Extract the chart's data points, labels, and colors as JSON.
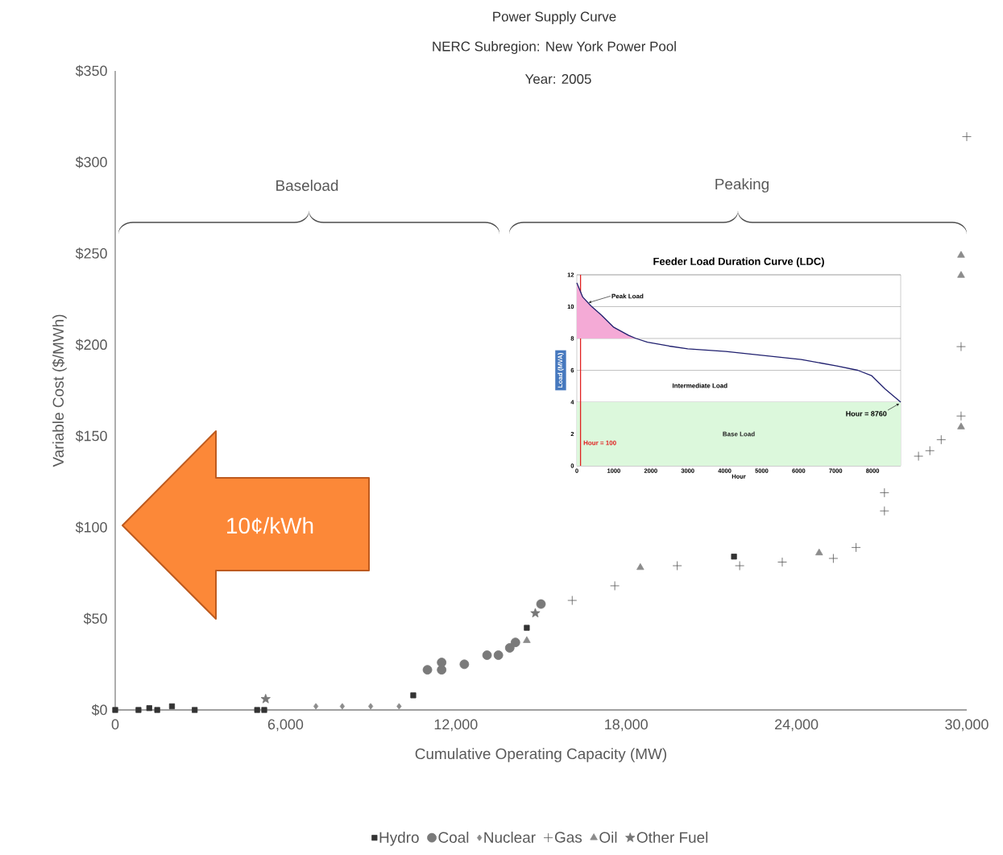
{
  "chart_data": [
    {
      "type": "scatter",
      "title": "Power Supply Curve",
      "subtitle": "NERC Subregion:  New York Power Pool",
      "xlabel": "Cumulative Operating Capacity (MW)",
      "ylabel": "Variable Cost ($/MWh)",
      "annotations": [
        "Year:  2005",
        "Baseload",
        "Peaking",
        "10¢/kWh"
      ],
      "xlim": [
        0,
        30000
      ],
      "ylim": [
        0,
        350
      ],
      "xticks": [
        0,
        {
          "value": 6000,
          "label": "6,000"
        },
        {
          "value": 12000,
          "label": "12,000"
        },
        {
          "value": 18000,
          "label": "18,000"
        },
        {
          "value": 24000,
          "label": "24,000"
        },
        {
          "value": 30000,
          "label": "30,000"
        }
      ],
      "yticks": [
        {
          "value": 0,
          "label": "$0"
        },
        {
          "value": 50,
          "label": "$50"
        },
        {
          "value": 100,
          "label": "$100"
        },
        {
          "value": 150,
          "label": "$150"
        },
        {
          "value": 200,
          "label": "$200"
        },
        {
          "value": 250,
          "label": "$250"
        },
        {
          "value": 300,
          "label": "$300"
        },
        {
          "value": 350,
          "label": "$350"
        }
      ],
      "legend": "bottom",
      "series": [
        {
          "name": "Hydro",
          "color": "#333333",
          "marker": "square",
          "x": [
            0,
            820,
            1200,
            1480,
            2000,
            2800,
            5000,
            5250,
            10500,
            14500,
            21800
          ],
          "values": [
            0,
            0,
            1,
            0,
            2,
            0,
            0,
            0,
            8,
            45,
            84
          ]
        },
        {
          "name": "Coal",
          "color": "#7a7a7a",
          "marker": "circle",
          "x": [
            11000,
            11500,
            11500,
            12300,
            13100,
            13500,
            13900,
            14100,
            15000
          ],
          "values": [
            22,
            22,
            26,
            25,
            30,
            30,
            34,
            37,
            58
          ]
        },
        {
          "name": "Nuclear",
          "color": "#8c8c8c",
          "marker": "diamond",
          "x": [
            7070,
            8000,
            9000,
            10000
          ],
          "values": [
            2,
            2,
            2,
            2
          ]
        },
        {
          "name": "Gas",
          "color": "#555555",
          "marker": "cross",
          "x": [
            16100,
            17600,
            19800,
            22000,
            23500,
            25300,
            26100,
            27100,
            27100,
            28300,
            28700,
            29100,
            29800,
            29800,
            30000
          ],
          "values": [
            60,
            68,
            79,
            79,
            81,
            83,
            89,
            109,
            119,
            139,
            142,
            148,
            161,
            199,
            314
          ]
        },
        {
          "name": "Oil",
          "color": "#8c8c8c",
          "marker": "triangle",
          "x": [
            14500,
            18500,
            24800,
            29800,
            29800,
            29800
          ],
          "values": [
            38,
            78,
            86,
            155,
            238,
            249
          ]
        },
        {
          "name": "Other Fuel",
          "color": "#777777",
          "marker": "star",
          "x": [
            5300,
            14800
          ],
          "values": [
            6,
            53
          ]
        }
      ]
    },
    {
      "type": "line",
      "title": "Feeder Load Duration Curve (LDC)",
      "xlabel": "Hour",
      "ylabel": "Load (MVA)",
      "xlim": [
        0,
        8760
      ],
      "ylim": [
        0,
        12
      ],
      "xticks": [
        0,
        1000,
        2000,
        3000,
        4000,
        5000,
        6000,
        7000,
        8000
      ],
      "yticks": [
        0,
        2,
        4,
        6,
        8,
        10,
        12
      ],
      "grid": "y",
      "series": [
        {
          "color": "#1f1f6e",
          "x": [
            0,
            160,
            380,
            670,
            1000,
            1400,
            1600,
            1910,
            2500,
            3000,
            4030,
            5050,
            6070,
            7060,
            7600,
            7970,
            8340,
            8760
          ],
          "values": [
            11.5,
            10.6,
            10.05,
            9.46,
            8.7,
            8.2,
            8.0,
            7.77,
            7.52,
            7.35,
            7.18,
            6.93,
            6.68,
            6.26,
            6.0,
            5.67,
            4.82,
            4.0
          ],
          "lower": [
            8,
            8,
            8,
            8,
            8,
            8,
            8,
            null,
            null,
            null,
            null,
            null,
            null,
            null,
            null,
            null,
            null,
            null
          ],
          "upper": [
            11.5,
            10.6,
            10.05,
            9.46,
            8.7,
            8.2,
            8.0,
            null,
            null,
            null,
            null,
            null,
            null,
            null,
            null,
            null,
            null,
            null
          ]
        }
      ],
      "bands": [
        {
          "axis": "y",
          "from": 0,
          "to": 4,
          "label": "Base Load",
          "color": "#dcf8dc"
        }
      ],
      "ref_lines": [
        {
          "axis": "x",
          "value": 100,
          "label": "Hour = 100",
          "color": "#e02020"
        }
      ],
      "annotations": [
        {
          "text": "Peak Load",
          "x": 300,
          "y": 10.2
        },
        {
          "text": "Hour = 8760",
          "x": 8760,
          "y": 4
        },
        "Intermediate Load"
      ]
    }
  ]
}
